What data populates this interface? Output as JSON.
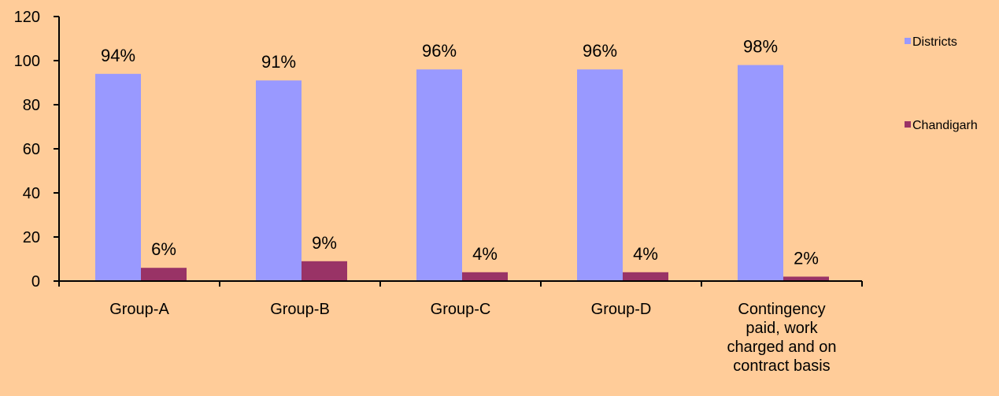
{
  "colors": {
    "background": "#FFCC99",
    "districts": "#9999FF",
    "chandigarh": "#993366",
    "axis": "#000000"
  },
  "chart_data": {
    "type": "bar",
    "categories": [
      [
        "Group-A"
      ],
      [
        "Group-B"
      ],
      [
        "Group-C"
      ],
      [
        "Group-D"
      ],
      [
        "Contingency",
        "paid, work",
        "charged and on",
        "contract basis"
      ]
    ],
    "series": [
      {
        "name": "Districts",
        "values": [
          94,
          91,
          96,
          96,
          98
        ],
        "labels": [
          "94%",
          "91%",
          "96%",
          "96%",
          "98%"
        ]
      },
      {
        "name": "Chandigarh",
        "values": [
          6,
          9,
          4,
          4,
          2
        ],
        "labels": [
          "6%",
          "9%",
          "4%",
          "4%",
          "2%"
        ]
      }
    ],
    "ylim": [
      0,
      120
    ],
    "yticks": [
      "0",
      "20",
      "40",
      "60",
      "80",
      "100",
      "120"
    ],
    "grid": false,
    "legend_position": "right"
  }
}
